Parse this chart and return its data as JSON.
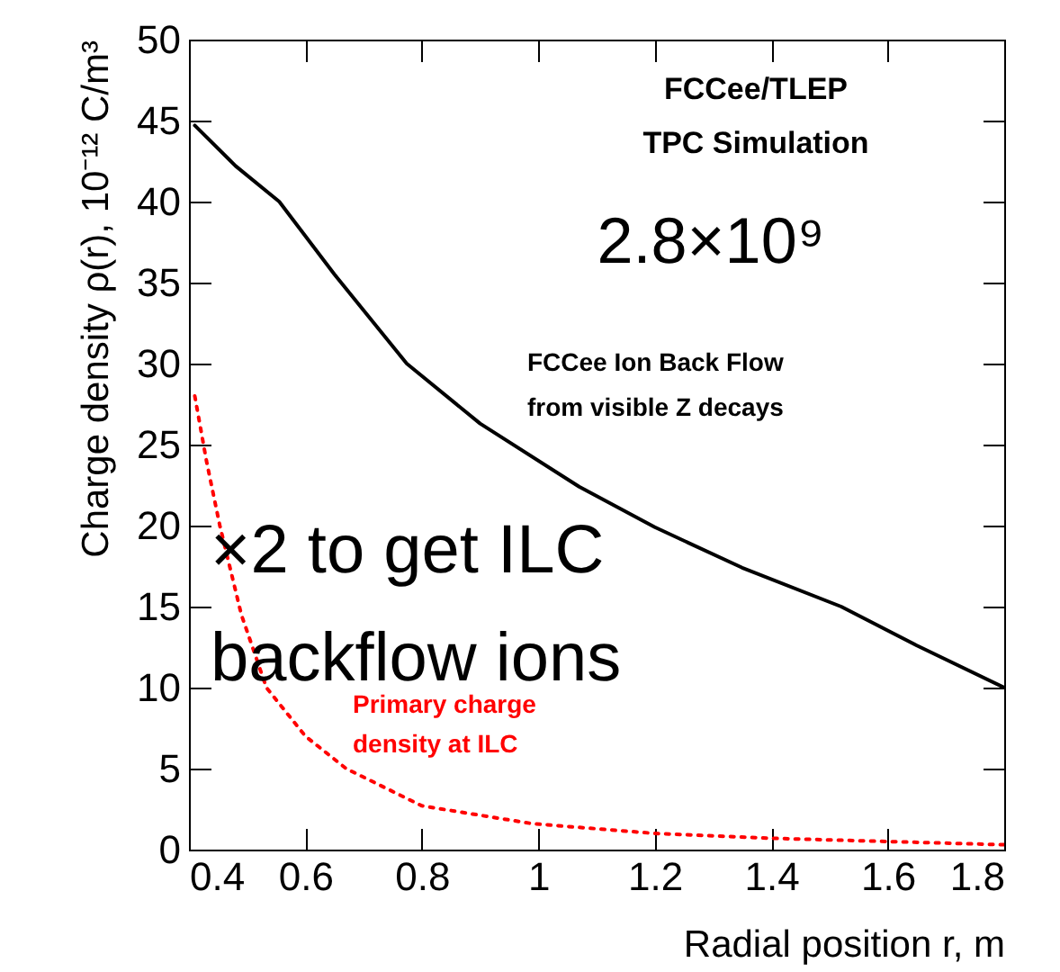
{
  "chart_data": {
    "type": "line",
    "xlabel": "Radial position r, m",
    "ylabel": "Charge density  ρ(r), 10⁻¹² C/m³",
    "xlim": [
      0.4,
      1.8
    ],
    "xticks": [
      0.4,
      0.6,
      0.8,
      1,
      1.2,
      1.4,
      1.6,
      1.8
    ],
    "ylim": [
      0,
      50
    ],
    "yticks": [
      0,
      5,
      10,
      15,
      20,
      25,
      30,
      35,
      40,
      45,
      50
    ],
    "series": [
      {
        "color": "#000000",
        "line_style": "solid",
        "x": [
          0.41,
          0.48,
          0.555,
          0.65,
          0.774,
          0.9,
          1.07,
          1.2,
          1.35,
          1.52,
          1.65,
          1.8
        ],
        "values": [
          44.7,
          42.2,
          40,
          35.5,
          30,
          26.3,
          22.4,
          19.9,
          17.4,
          15,
          12.6,
          10
        ]
      },
      {
        "color": "#ff0000",
        "line_style": "dotted",
        "x": [
          0.41,
          0.43,
          0.453,
          0.49,
          0.533,
          0.6,
          0.67,
          0.8,
          0.99,
          1.2,
          1.4,
          1.6,
          1.8
        ],
        "values": [
          28,
          24,
          20,
          14.5,
          10,
          7,
          5,
          2.7,
          1.6,
          1.0,
          0.7,
          0.5,
          0.3
        ]
      }
    ],
    "annotations": [
      "FCCee/TLEP",
      "TPC Simulation",
      "2.8×10⁹",
      "FCCee Ion Back Flow",
      "from visible Z decays",
      "×2 to get ILC",
      "backflow ions",
      "Primary charge",
      "density at ILC"
    ]
  }
}
